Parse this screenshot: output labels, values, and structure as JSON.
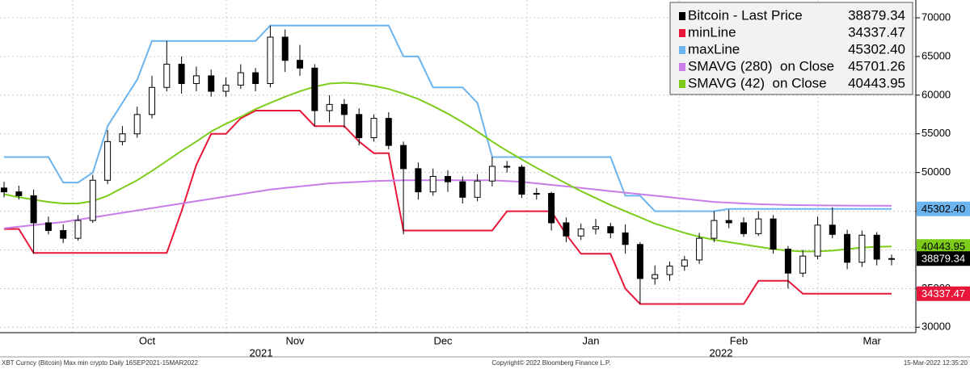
{
  "chart_data": {
    "type": "candlestick",
    "categories": [
      null,
      null,
      null,
      null,
      null,
      null,
      null,
      null,
      null,
      null,
      "Oct",
      null,
      null,
      null,
      null,
      null,
      null,
      null,
      null,
      null,
      "Nov",
      null,
      null,
      null,
      null,
      null,
      null,
      null,
      null,
      null,
      "Dec",
      null,
      null,
      null,
      null,
      null,
      null,
      null,
      null,
      null,
      "Jan",
      null,
      null,
      null,
      null,
      null,
      null,
      null,
      null,
      null,
      "Feb",
      null,
      null,
      null,
      null,
      null,
      null,
      null,
      null,
      "Mar",
      null
    ],
    "years": [
      "2021",
      "2022"
    ],
    "ylim": [
      29300,
      72300
    ],
    "yticks": [
      30000,
      35000,
      40000,
      45000,
      50000,
      55000,
      60000,
      65000,
      70000
    ],
    "grid": true,
    "candles": {
      "name": "Bitcoin - Last Price",
      "color": "#000000",
      "up_color": "#ffffff",
      "down_color": "#000000",
      "last_label": "38879.34",
      "open": [
        48000,
        47500,
        47000,
        43500,
        42500,
        41500,
        43800,
        49000,
        54000,
        55000,
        57500,
        61000,
        64000,
        61500,
        62500,
        60500,
        61300,
        62900,
        61500,
        67500,
        64500,
        63500,
        58000,
        58800,
        57500,
        54500,
        57000,
        53500,
        50500,
        47500,
        49500,
        48800,
        46800,
        48900,
        50800,
        50700,
        47200,
        47300,
        43500,
        41800,
        42700,
        43000,
        42200,
        40700,
        36300,
        36800,
        37900,
        38700,
        41500,
        43800,
        43500,
        42100,
        44000,
        40100,
        37000,
        39200,
        43200,
        42000,
        38400,
        41900,
        38800
      ],
      "high": [
        48800,
        48300,
        47800,
        44300,
        43300,
        44500,
        49700,
        55500,
        56000,
        58500,
        62500,
        67000,
        65000,
        63700,
        63300,
        62300,
        64000,
        63500,
        69000,
        68500,
        66500,
        64000,
        60000,
        59500,
        58300,
        57500,
        57800,
        54000,
        51300,
        50500,
        50300,
        49500,
        49800,
        52000,
        51500,
        51000,
        48000,
        47500,
        44200,
        43400,
        44000,
        43500,
        43300,
        41000,
        38000,
        38500,
        39200,
        42200,
        45000,
        45200,
        44200,
        45000,
        44500,
        40500,
        40000,
        44300,
        45500,
        42600,
        42500,
        42300,
        39400
      ],
      "low": [
        46800,
        46500,
        39500,
        42000,
        40900,
        41200,
        43500,
        48500,
        53500,
        54500,
        57000,
        60500,
        60200,
        60500,
        59800,
        59800,
        60800,
        60500,
        61000,
        63000,
        62500,
        56000,
        56500,
        55800,
        53500,
        54000,
        53000,
        42000,
        46500,
        47000,
        47500,
        46000,
        46300,
        48200,
        50000,
        46700,
        46500,
        42500,
        41000,
        41300,
        42000,
        41500,
        39500,
        33000,
        35500,
        36000,
        37300,
        38200,
        41000,
        42800,
        41700,
        41800,
        39500,
        35000,
        36500,
        38800,
        41500,
        37500,
        37800,
        38000,
        38000
      ],
      "close": [
        47500,
        47000,
        43500,
        42500,
        41500,
        43800,
        49000,
        54000,
        55000,
        57500,
        61000,
        64000,
        61500,
        62500,
        60500,
        61300,
        62900,
        61500,
        67500,
        64500,
        63500,
        58000,
        58800,
        57500,
        54500,
        57000,
        53500,
        50500,
        47500,
        49500,
        48800,
        46800,
        48900,
        50800,
        50700,
        47200,
        47300,
        43500,
        41800,
        42700,
        43000,
        42200,
        40700,
        36300,
        36800,
        37900,
        38700,
        41500,
        43800,
        43500,
        42100,
        44000,
        40100,
        37000,
        39200,
        43200,
        42000,
        38400,
        41900,
        38800,
        38879.34
      ]
    },
    "lines": [
      {
        "name": "minLine",
        "color": "#e8173a",
        "last_label": "34337.47",
        "axis_tag": true,
        "values": [
          42700,
          42700,
          39600,
          39600,
          39600,
          39600,
          39600,
          39600,
          39600,
          39600,
          39600,
          39600,
          45000,
          51000,
          55000,
          55000,
          57000,
          58000,
          58000,
          58000,
          58000,
          56000,
          56000,
          56000,
          54000,
          52500,
          52500,
          42500,
          42500,
          42500,
          42500,
          42500,
          42500,
          42500,
          45000,
          45000,
          45000,
          45000,
          42000,
          39500,
          39500,
          39500,
          35000,
          33000,
          33000,
          33000,
          33000,
          33000,
          33000,
          33000,
          33000,
          36000,
          36000,
          36000,
          34337.47,
          34337.47,
          34337.47,
          34337.47,
          34337.47,
          34337.47,
          34337.47
        ]
      },
      {
        "name": "maxLine",
        "color": "#6cb4ee",
        "last_label": "45302.40",
        "axis_tag": true,
        "values": [
          52000,
          52000,
          52000,
          52000,
          48700,
          48700,
          50000,
          56000,
          59000,
          62000,
          67000,
          67000,
          67000,
          67000,
          67000,
          67000,
          67000,
          67000,
          69000,
          69000,
          69000,
          69000,
          69000,
          69000,
          69000,
          69000,
          69000,
          65000,
          65000,
          61000,
          61000,
          61000,
          59000,
          52000,
          52000,
          52000,
          52000,
          52000,
          52000,
          52000,
          52000,
          52000,
          47000,
          47000,
          45000,
          45000,
          45000,
          45000,
          45000,
          45302,
          45302,
          45302,
          45302,
          45302,
          45302,
          45302,
          45302,
          45302,
          45302,
          45302,
          45302.4
        ]
      },
      {
        "name": "SMAVG (280)  on Close",
        "color": "#c87de8",
        "last_label": "45701.26",
        "axis_tag": false,
        "values": [
          42800,
          43000,
          43200,
          43400,
          43600,
          43900,
          44200,
          44500,
          44800,
          45100,
          45400,
          45700,
          46000,
          46300,
          46600,
          46900,
          47200,
          47500,
          47800,
          48000,
          48200,
          48400,
          48600,
          48700,
          48800,
          48900,
          48950,
          49000,
          49000,
          49000,
          49000,
          49000,
          49000,
          49000,
          48900,
          48800,
          48600,
          48400,
          48200,
          48000,
          47800,
          47600,
          47400,
          47200,
          47000,
          46800,
          46600,
          46400,
          46200,
          46100,
          46000,
          45900,
          45850,
          45800,
          45780,
          45760,
          45740,
          45730,
          45720,
          45710,
          45701.26
        ]
      },
      {
        "name": "SMAVG (42)  on Close",
        "color": "#7dcc1a",
        "last_label": "40443.95",
        "axis_tag": true,
        "values": [
          47200,
          46800,
          46500,
          46200,
          46000,
          46000,
          46300,
          47000,
          48000,
          49000,
          50200,
          51500,
          52800,
          54000,
          55300,
          56300,
          57200,
          58200,
          59000,
          59800,
          60500,
          61100,
          61500,
          61600,
          61500,
          61200,
          60800,
          60200,
          59500,
          58600,
          57600,
          56500,
          55300,
          54000,
          52800,
          51700,
          50600,
          49600,
          48600,
          47600,
          46700,
          45800,
          45000,
          44200,
          43400,
          42800,
          42200,
          41700,
          41300,
          41000,
          40700,
          40400,
          40100,
          39900,
          39800,
          39800,
          39900,
          40100,
          40300,
          40400,
          40443.95
        ]
      }
    ],
    "footer": {
      "left": "XBT Curncy (Bitcoin) Max min crypto  Daily 16SEP2021-15MAR2022",
      "center": "Copyright© 2022 Bloomberg Finance L.P.",
      "right": "15-Mar-2022 12:35:20"
    }
  }
}
